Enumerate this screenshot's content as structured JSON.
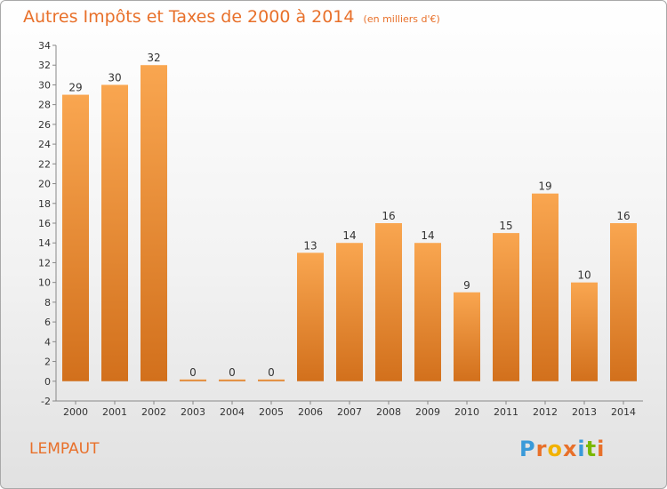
{
  "header": {
    "title": "Autres Impôts et Taxes de 2000 à 2014",
    "subtitle": "(en milliers d'€)"
  },
  "commune": "LEMPAUT",
  "logo": {
    "text": "Proxiti",
    "letter_colors": [
      "#3a9ad9",
      "#e8702a",
      "#f2b200",
      "#e8702a",
      "#3a9ad9",
      "#7ab800",
      "#e8702a"
    ]
  },
  "colors": {
    "bar_light": "#f9a650",
    "bar_dark": "#d2701c",
    "accent": "#e8702a"
  },
  "chart_data": {
    "type": "bar",
    "title": "Autres Impôts et Taxes de 2000 à 2014",
    "subtitle": "(en milliers d'€)",
    "categories": [
      "2000",
      "2001",
      "2002",
      "2003",
      "2004",
      "2005",
      "2006",
      "2007",
      "2008",
      "2009",
      "2010",
      "2011",
      "2012",
      "2013",
      "2014"
    ],
    "values": [
      29,
      30,
      32,
      0,
      0,
      0,
      13,
      14,
      16,
      14,
      9,
      15,
      19,
      10,
      16
    ],
    "ylim": [
      -2,
      34
    ],
    "yticks": [
      -2,
      0,
      2,
      4,
      6,
      8,
      10,
      12,
      14,
      16,
      18,
      20,
      22,
      24,
      26,
      28,
      30,
      32,
      34
    ],
    "xlabel": "",
    "ylabel": "",
    "grid": false,
    "legend": "none"
  }
}
